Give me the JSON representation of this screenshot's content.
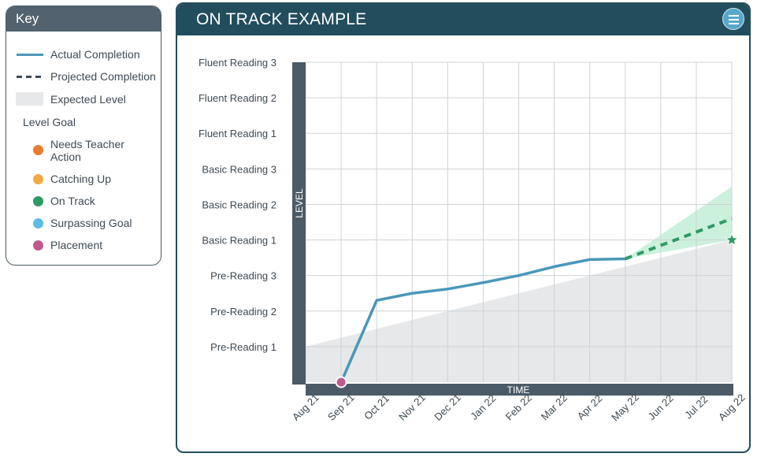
{
  "key": {
    "title": "Key",
    "items": [
      {
        "label": "Actual Completion",
        "swatch": "line",
        "color": "#4a97b9"
      },
      {
        "label": "Projected Completion",
        "swatch": "dashed",
        "color": "#3e4a54"
      },
      {
        "label": "Expected Level",
        "swatch": "area",
        "color": "#e6e8ea"
      }
    ],
    "goal_title": "Level Goal",
    "goals": [
      {
        "label": "Needs Teacher Action",
        "color": "#ea7a2c"
      },
      {
        "label": "Catching Up",
        "color": "#f2a844"
      },
      {
        "label": "On Track",
        "color": "#2e9a66"
      },
      {
        "label": "Surpassing Goal",
        "color": "#5bbde6"
      },
      {
        "label": "Placement",
        "color": "#c05a8c"
      }
    ]
  },
  "panel": {
    "title": "ON TRACK EXAMPLE",
    "menu_icon": "hamburger-menu-icon"
  },
  "chart_data": {
    "type": "line",
    "title": "ON TRACK EXAMPLE",
    "xlabel": "TIME",
    "ylabel": "LEVEL",
    "x": [
      "Aug 21",
      "Sep 21",
      "Oct 21",
      "Nov 21",
      "Dec 21",
      "Jan 22",
      "Feb 22",
      "Mar 22",
      "Apr 22",
      "May 22",
      "Jun 22",
      "Jul 22",
      "Aug 22"
    ],
    "y_levels": [
      "Pre-Reading 1",
      "Pre-Reading 2",
      "Pre-Reading 3",
      "Basic Reading 1",
      "Basic Reading 2",
      "Basic Reading 3",
      "Fluent Reading 1",
      "Fluent Reading 2",
      "Fluent Reading 3"
    ],
    "ylim": [
      0,
      9
    ],
    "grid": true,
    "series": [
      {
        "name": "Actual Completion",
        "color": "#4a97b9",
        "points": [
          [
            1,
            0
          ],
          [
            2,
            2.3
          ],
          [
            3,
            2.5
          ],
          [
            4,
            2.62
          ],
          [
            5,
            2.8
          ],
          [
            6,
            3.0
          ],
          [
            7,
            3.25
          ],
          [
            8,
            3.45
          ],
          [
            9,
            3.47
          ]
        ]
      },
      {
        "name": "Projected Completion",
        "color": "#2e9a66",
        "style": "dashed",
        "points": [
          [
            9,
            3.47
          ],
          [
            12,
            4.6
          ]
        ]
      }
    ],
    "expected_level": {
      "name": "Expected Level",
      "color": "#e6e8ea",
      "start": [
        0,
        1.0
      ],
      "end": [
        12,
        4.0
      ]
    },
    "projection_band": {
      "color": "#b9ecd2",
      "start": [
        9,
        3.47
      ],
      "end_low": 4.0,
      "end_high": 5.5
    },
    "placement": {
      "x": 1,
      "y": 0,
      "color": "#c05a8c",
      "label": "Placement"
    },
    "goal": {
      "x": 12,
      "y": 4.0,
      "color": "#2e9a66",
      "label": "On Track"
    }
  }
}
